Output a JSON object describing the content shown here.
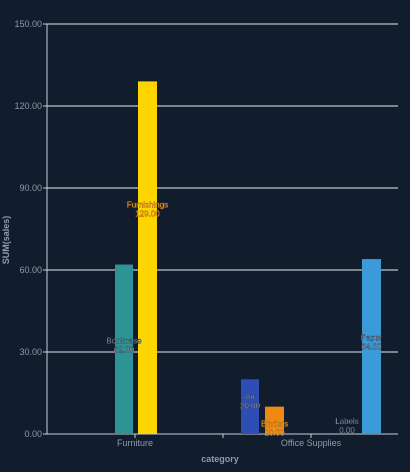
{
  "chart_data": {
    "type": "bar",
    "xlabel": "category",
    "ylabel": "SUM(sales)",
    "ylim": [
      0,
      150
    ],
    "yticks": [
      0,
      30,
      60,
      90,
      120,
      150
    ],
    "ytick_labels": [
      "0.00",
      "30.00",
      "60.00",
      "90.00",
      "120.00",
      "150.00"
    ],
    "grid": true,
    "categories": [
      "Furniture",
      "Office Supplies"
    ],
    "groups": [
      {
        "category": "Furniture",
        "bars": [
          {
            "name": "Bookcase",
            "value": 62,
            "value_label": "62.00",
            "color": "#2e9395"
          },
          {
            "name": "Furnishings",
            "value": 129,
            "value_label": "129.00",
            "color": "#ffd500"
          }
        ]
      },
      {
        "category": "Office Supplies",
        "bars": [
          {
            "name": "Art",
            "value": 20,
            "value_label": "20.00",
            "color": "#2f4eb5"
          },
          {
            "name": "Binders",
            "value": 10,
            "value_label": "10.00",
            "color": "#ee8a12"
          },
          {
            "name": "Labels",
            "value": 0,
            "value_label": "0.00",
            "color": "#9aa3ad"
          },
          {
            "name": "Paper",
            "value": 64,
            "value_label": "64.00",
            "color": "#3a9bd8"
          }
        ]
      }
    ]
  },
  "colors": {
    "background": "#111d2d",
    "grid": "#e8ecf0",
    "axis": "#c8cdd3",
    "text": "#8f9bab"
  }
}
